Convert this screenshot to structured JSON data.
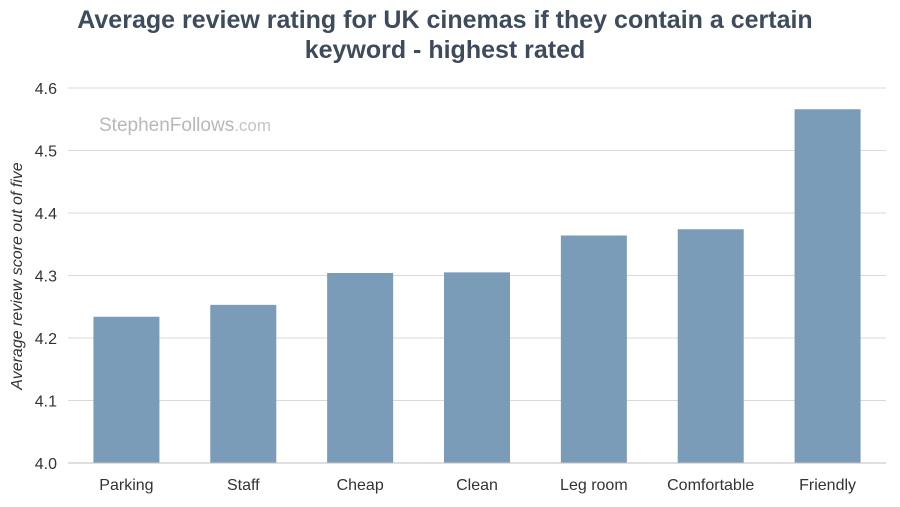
{
  "chart_data": {
    "type": "bar",
    "title_lines": [
      "Average review rating for UK cinemas if they contain a certain",
      "keyword - highest rated"
    ],
    "xlabel": "",
    "ylabel": "Average review score out of five",
    "categories": [
      "Parking",
      "Staff",
      "Cheap",
      "Clean",
      "Leg room",
      "Comfortable",
      "Friendly"
    ],
    "values": [
      4.234,
      4.253,
      4.304,
      4.305,
      4.364,
      4.374,
      4.566
    ],
    "ylim": [
      4.0,
      4.6
    ],
    "yticks": [
      "4.0",
      "4.1",
      "4.2",
      "4.3",
      "4.4",
      "4.5",
      "4.6"
    ],
    "grid": true,
    "bar_color": "#7b9cb9",
    "gridline_color": "#d9d9d9",
    "title_color": "#3d4b5c"
  },
  "watermark": {
    "main": "StephenFollows",
    "suffix": ".com"
  }
}
